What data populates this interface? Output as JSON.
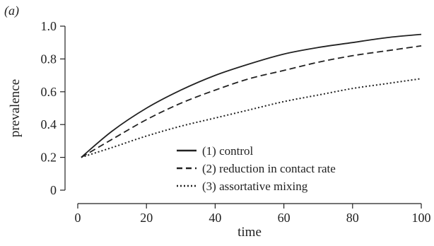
{
  "chart_data": {
    "type": "line",
    "panel_label": "(a)",
    "xlabel": "time",
    "ylabel": "prevalence",
    "xlim": [
      0,
      100
    ],
    "ylim": [
      0,
      1.0
    ],
    "xticks": [
      0,
      20,
      40,
      60,
      80,
      100
    ],
    "yticks": [
      0,
      0.2,
      0.4,
      0.6,
      0.8,
      1.0
    ],
    "xtick_labels": [
      "0",
      "20",
      "40",
      "60",
      "80",
      "100"
    ],
    "ytick_labels": [
      "0",
      "0.2",
      "0.4",
      "0.6",
      "0.8",
      "1.0"
    ],
    "grid": false,
    "legend_position": "bottom-center",
    "x": [
      1,
      10,
      20,
      30,
      40,
      50,
      60,
      70,
      80,
      90,
      100
    ],
    "series": [
      {
        "name": "(1) control",
        "style": "solid",
        "color": "#222222",
        "values": [
          0.2,
          0.36,
          0.5,
          0.61,
          0.7,
          0.77,
          0.83,
          0.87,
          0.9,
          0.93,
          0.95
        ]
      },
      {
        "name": "(2) reduction in contact rate",
        "style": "dashed",
        "color": "#222222",
        "values": [
          0.2,
          0.31,
          0.43,
          0.53,
          0.61,
          0.68,
          0.73,
          0.78,
          0.82,
          0.85,
          0.88
        ]
      },
      {
        "name": "(3) assortative mixing",
        "style": "dotted",
        "color": "#222222",
        "values": [
          0.2,
          0.26,
          0.33,
          0.39,
          0.44,
          0.49,
          0.54,
          0.58,
          0.62,
          0.65,
          0.68
        ]
      }
    ]
  }
}
